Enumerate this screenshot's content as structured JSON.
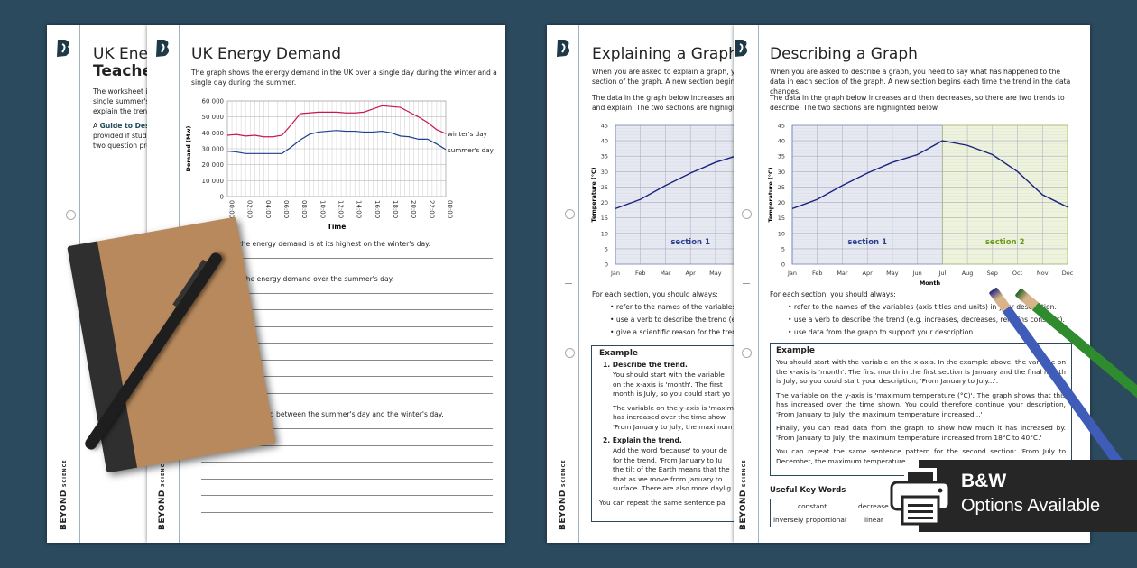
{
  "colors": {
    "background": "#2c4a5e",
    "winter": "#c8174f",
    "summer": "#1f3f8f",
    "temp_line": "#1a237e",
    "section1_fill": "#e6e8f2",
    "section2_fill": "#eef3dc",
    "section1_text": "#2a3f8f",
    "section2_text": "#6a9a1a",
    "banner": "#262626"
  },
  "brand": {
    "name": "BEYOND",
    "sub": "SCIENCE"
  },
  "teacher_page": {
    "title": "UK Ener",
    "subtitle": "Teacher",
    "p1": "The worksheet i",
    "p2": "single summer's",
    "p3": "explain the trend",
    "p4_prefix": "A ",
    "p4_bold": "Guide to Desc",
    "p5": "provided if stude",
    "p6": "two question pro"
  },
  "energy_page": {
    "title": "UK Energy Demand",
    "intro": "The graph shows the energy demand in the UK over a single day during the winter and a single day during the summer.",
    "q1": "n the time the energy demand is at its highest on the winter's day.",
    "q2": "e change in the energy demand over the summer's day.",
    "q3": "ce in energy demand between the summer's day and the winter's day."
  },
  "explaining_page": {
    "title": "Explaining a Graph",
    "p1": "When you are asked to explain a graph, you need to say what has happened to the data in each",
    "p1b": "section of the graph. A new section begins",
    "p2": "The data in the graph below increases and then decreases, so there are two trends to describe",
    "p2b": "and explain. The two sections are highlighted below.",
    "for_each": "For each section, you should always:",
    "bullets": [
      "refer to the names of the variables",
      "use a verb to describe the trend (e.g.",
      "give a scientific reason for the trend"
    ],
    "example_title": "Example",
    "step1": "1.  Describe the trend.",
    "s1p1": [
      "You should start with the variable",
      "on the x-axis is 'month'. The first",
      "month is July, so you could start yo"
    ],
    "s1p2": [
      "The variable on the y-axis is 'maxim",
      "has increased over the time show",
      "'From January to July, the maximum"
    ],
    "step2": "2.  Explain the trend.",
    "s2p": [
      "Add the word 'because' to your de",
      "for the trend. 'From January to Ju",
      "the tilt of the Earth means that the",
      "that as we move from January to",
      "surface. There are also more daylig"
    ],
    "closing": "You can repeat the same sentence pa"
  },
  "describing_page": {
    "title": "Describing a Graph",
    "p1": "When you are asked to describe a graph, you need to say what has happened to the data in each section of the graph. A new section begins each time the trend in the data changes.",
    "p2": "The data in the graph below increases and then decreases, so there are two trends to describe. The two sections are highlighted below.",
    "for_each": "For each section, you should always:",
    "bullets": [
      "refer to the names of the variables (axis titles and units) in your description.",
      "use a verb to describe the trend (e.g. increases, decreases, remains constant).",
      "use data from the graph to support your description."
    ],
    "example_title": "Example",
    "ex": [
      "You should start with the variable on the x-axis. In the example above, the variable on the x-axis is 'month'. The first month in the first section is January and the final month is July, so you could start your description, 'From January to July...'.",
      "The variable on the y-axis is 'maximum temperature (°C)'. The graph shows that this has increased over the time shown. You could therefore continue your description, 'From January to July, the maximum temperature increased...'",
      "Finally, you can read data from the graph to show how much it has increased by. 'From January to July, the maximum temperature increased from 18°C to 40°C.'",
      "You can repeat the same sentence pattern for the second section: 'From July to December, the maximum temperature..."
    ],
    "key_words_title": "Useful Key Words",
    "key_words": [
      "constant",
      "decrease",
      "inversely proportional",
      "linear"
    ]
  },
  "banner": {
    "icon": "printer-icon",
    "line1": "B&W",
    "line2": "Options Available"
  },
  "chart_data": [
    {
      "type": "line",
      "title": "",
      "xlabel": "Time",
      "ylabel": "Demand (Mw)",
      "ylim": [
        0,
        60000
      ],
      "yticks": [
        "0",
        "10 000",
        "20 000",
        "30 000",
        "40 000",
        "50 000",
        "60 000"
      ],
      "x": [
        "00:00",
        "01:00",
        "02:00",
        "03:00",
        "04:00",
        "05:00",
        "06:00",
        "07:00",
        "08:00",
        "09:00",
        "10:00",
        "11:00",
        "12:00",
        "13:00",
        "14:00",
        "15:00",
        "16:00",
        "17:00",
        "18:00",
        "19:00",
        "20:00",
        "21:00",
        "22:00",
        "23:00",
        "00:00"
      ],
      "xtick_labels": [
        "00:00",
        "02:00",
        "04:00",
        "06:00",
        "08:00",
        "10:00",
        "12:00",
        "14:00",
        "16:00",
        "18:00",
        "20:00",
        "22:00",
        "00:00"
      ],
      "grid": true,
      "legend": "right (inline labels)",
      "series": [
        {
          "name": "winter's day",
          "values": [
            38500,
            39000,
            38000,
            38500,
            37500,
            37500,
            38500,
            45000,
            52000,
            52500,
            53000,
            53000,
            53000,
            52500,
            52500,
            53000,
            55000,
            57000,
            56500,
            56000,
            53000,
            50000,
            46500,
            42000,
            39500
          ]
        },
        {
          "name": "summer's day",
          "values": [
            28500,
            28000,
            27000,
            27000,
            27000,
            27000,
            27000,
            31000,
            35500,
            39000,
            40500,
            41000,
            41500,
            41000,
            41000,
            40500,
            40500,
            41000,
            40000,
            38000,
            37500,
            36000,
            36000,
            33000,
            29500
          ]
        }
      ]
    },
    {
      "type": "line",
      "title": "",
      "xlabel": "Month",
      "ylabel": "Temperature (°C)",
      "ylim": [
        0,
        45
      ],
      "yticks": [
        "0",
        "5",
        "10",
        "15",
        "20",
        "25",
        "30",
        "35",
        "40",
        "45"
      ],
      "categories": [
        "Jan",
        "Feb",
        "Mar",
        "Apr",
        "May",
        "Jun",
        "Jul",
        "Aug",
        "Sep",
        "Oct",
        "Nov",
        "Dec"
      ],
      "values": [
        18,
        21,
        25.5,
        29.5,
        33,
        35.5,
        40,
        38.5,
        35.5,
        30,
        22.5,
        18.5
      ],
      "grid": true,
      "sections": [
        {
          "label": "section 1",
          "from": "Jan",
          "to": "Jul"
        },
        {
          "label": "section 2",
          "from": "Jul",
          "to": "Dec"
        }
      ]
    }
  ]
}
